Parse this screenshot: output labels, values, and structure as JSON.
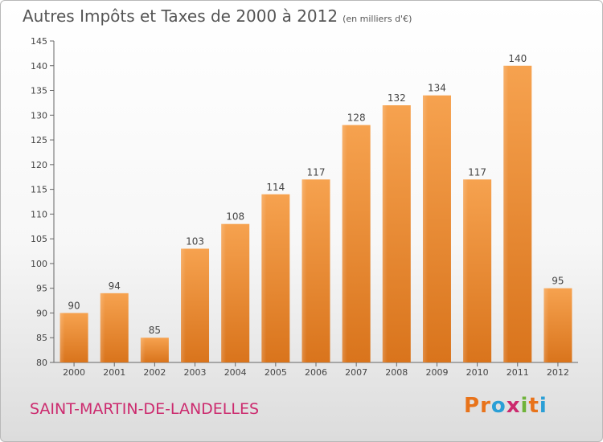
{
  "chart_data": {
    "type": "bar",
    "title": "Autres Impôts et Taxes de 2000 à 2012",
    "unit_note": "(en milliers d'€)",
    "categories": [
      "2000",
      "2001",
      "2002",
      "2003",
      "2004",
      "2005",
      "2006",
      "2007",
      "2008",
      "2009",
      "2010",
      "2011",
      "2012"
    ],
    "values": [
      90,
      94,
      85,
      103,
      108,
      114,
      117,
      128,
      132,
      134,
      117,
      140,
      95
    ],
    "ylim": [
      80,
      145
    ],
    "yticks": [
      80,
      85,
      90,
      95,
      100,
      105,
      110,
      115,
      120,
      125,
      130,
      135,
      140,
      145
    ],
    "xlabel": "",
    "ylabel": "",
    "grid": false,
    "bar_color": "#f08d30"
  },
  "footer": {
    "commune": "SAINT-MARTIN-DE-LANDELLES",
    "brand": "Proxiti"
  }
}
